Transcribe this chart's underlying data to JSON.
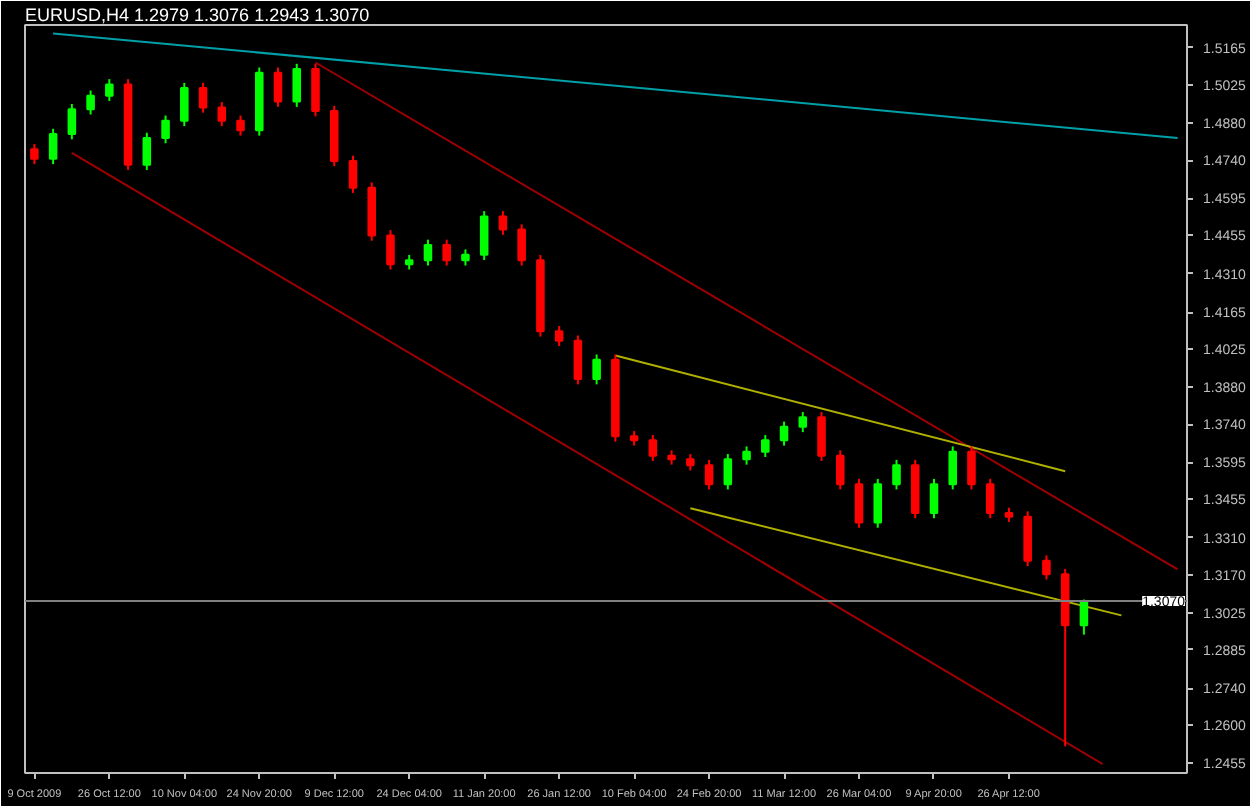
{
  "chart_data": {
    "type": "candlestick",
    "title": "EURUSD,H4  1.2979 1.3076 1.2943 1.3070",
    "categories": [
      "9 Oct 2009",
      null,
      null,
      null,
      "26 Oct 12:00",
      null,
      null,
      null,
      "10 Nov 04:00",
      null,
      null,
      null,
      "24 Nov 20:00",
      null,
      null,
      null,
      "9 Dec 12:00",
      null,
      null,
      null,
      "24 Dec 04:00",
      null,
      null,
      null,
      "11 Jan 20:00",
      null,
      null,
      null,
      "26 Jan 12:00",
      null,
      null,
      null,
      "10 Feb 04:00",
      null,
      null,
      null,
      "24 Feb 20:00",
      null,
      null,
      null,
      "11 Mar 12:00",
      null,
      null,
      null,
      "26 Mar 04:00",
      null,
      null,
      null,
      "9 Apr 20:00",
      null,
      null,
      null,
      "26 Apr 12:00",
      null,
      null,
      null,
      null,
      null,
      null,
      null,
      null,
      null
    ],
    "ohlc": [
      [
        1.4781,
        1.4801,
        1.4725,
        1.4745
      ],
      [
        1.4745,
        1.4859,
        1.4725,
        1.4839
      ],
      [
        1.4839,
        1.4953,
        1.4819,
        1.4933
      ],
      [
        1.4933,
        1.5004,
        1.4913,
        1.4984
      ],
      [
        1.4984,
        1.5047,
        1.4964,
        1.5027
      ],
      [
        1.5027,
        1.5047,
        1.4703,
        1.4723
      ],
      [
        1.4723,
        1.4844,
        1.4703,
        1.4824
      ],
      [
        1.4824,
        1.4909,
        1.4804,
        1.4889
      ],
      [
        1.4889,
        1.5033,
        1.4869,
        1.5013
      ],
      [
        1.5013,
        1.5033,
        1.492,
        1.494
      ],
      [
        1.494,
        1.496,
        1.4869,
        1.4889
      ],
      [
        1.4889,
        1.4909,
        1.4833,
        1.4853
      ],
      [
        1.4853,
        1.5091,
        1.4833,
        1.5071
      ],
      [
        1.5071,
        1.5091,
        1.4942,
        1.4962
      ],
      [
        1.4962,
        1.5105,
        1.4942,
        1.5085
      ],
      [
        1.5085,
        1.5105,
        1.4906,
        1.4926
      ],
      [
        1.4926,
        1.4946,
        1.4717,
        1.4737
      ],
      [
        1.4737,
        1.4757,
        1.4616,
        1.4636
      ],
      [
        1.4636,
        1.4656,
        1.4435,
        1.4455
      ],
      [
        1.4455,
        1.4475,
        1.4326,
        1.4346
      ],
      [
        1.4346,
        1.4381,
        1.4326,
        1.4361
      ],
      [
        1.4361,
        1.4439,
        1.4341,
        1.4419
      ],
      [
        1.4419,
        1.4439,
        1.4341,
        1.4361
      ],
      [
        1.4361,
        1.4402,
        1.4341,
        1.4382
      ],
      [
        1.4382,
        1.4547,
        1.4362,
        1.4527
      ],
      [
        1.4527,
        1.4547,
        1.4457,
        1.4477
      ],
      [
        1.4477,
        1.4497,
        1.4341,
        1.4361
      ],
      [
        1.4361,
        1.4381,
        1.4072,
        1.4092
      ],
      [
        1.4092,
        1.4112,
        1.4036,
        1.4056
      ],
      [
        1.4056,
        1.4076,
        1.3891,
        1.3911
      ],
      [
        1.3911,
        1.4004,
        1.3891,
        1.3984
      ],
      [
        1.3984,
        1.4004,
        1.3674,
        1.3694
      ],
      [
        1.3694,
        1.3714,
        1.3659,
        1.3679
      ],
      [
        1.3679,
        1.3699,
        1.3601,
        1.3621
      ],
      [
        1.3621,
        1.3641,
        1.3587,
        1.3607
      ],
      [
        1.3607,
        1.3627,
        1.3565,
        1.3585
      ],
      [
        1.3585,
        1.3605,
        1.3493,
        1.3513
      ],
      [
        1.3513,
        1.3627,
        1.3493,
        1.3607
      ],
      [
        1.3607,
        1.3656,
        1.3587,
        1.3636
      ],
      [
        1.3636,
        1.3699,
        1.3616,
        1.3679
      ],
      [
        1.3679,
        1.375,
        1.3659,
        1.373
      ],
      [
        1.373,
        1.3786,
        1.371,
        1.3766
      ],
      [
        1.3766,
        1.3786,
        1.3601,
        1.3621
      ],
      [
        1.3621,
        1.3641,
        1.3493,
        1.3513
      ],
      [
        1.3513,
        1.3533,
        1.3348,
        1.3368
      ],
      [
        1.3368,
        1.3533,
        1.3348,
        1.3513
      ],
      [
        1.3513,
        1.3605,
        1.3493,
        1.3585
      ],
      [
        1.3585,
        1.3605,
        1.3384,
        1.3404
      ],
      [
        1.3404,
        1.3533,
        1.3384,
        1.3513
      ],
      [
        1.3513,
        1.3656,
        1.3493,
        1.3636
      ],
      [
        1.3636,
        1.3656,
        1.3493,
        1.3513
      ],
      [
        1.3513,
        1.3533,
        1.3384,
        1.3404
      ],
      [
        1.3404,
        1.3424,
        1.337,
        1.339
      ],
      [
        1.339,
        1.341,
        1.3203,
        1.3223
      ],
      [
        1.3223,
        1.3243,
        1.3152,
        1.3172
      ],
      [
        1.3172,
        1.3192,
        1.252,
        1.2979
      ],
      [
        1.2979,
        1.3076,
        1.2943,
        1.307
      ],
      null,
      null,
      null,
      null,
      null
    ],
    "colors": [
      "#ff0000",
      "#00ff00",
      "#00ff00",
      "#00ff00",
      "#00ff00",
      "#ff0000",
      "#00ff00",
      "#00ff00",
      "#00ff00",
      "#ff0000",
      "#ff0000",
      "#ff0000",
      "#00ff00",
      "#ff0000",
      "#00ff00",
      "#ff0000",
      "#ff0000",
      "#ff0000",
      "#ff0000",
      "#ff0000",
      "#00ff00",
      "#00ff00",
      "#ff0000",
      "#00ff00",
      "#00ff00",
      "#ff0000",
      "#ff0000",
      "#ff0000",
      "#ff0000",
      "#ff0000",
      "#00ff00",
      "#ff0000",
      "#ff0000",
      "#ff0000",
      "#ff0000",
      "#ff0000",
      "#ff0000",
      "#00ff00",
      "#00ff00",
      "#00ff00",
      "#00ff00",
      "#00ff00",
      "#ff0000",
      "#ff0000",
      "#ff0000",
      "#00ff00",
      "#00ff00",
      "#ff0000",
      "#00ff00",
      "#00ff00",
      "#ff0000",
      "#ff0000",
      "#ff0000",
      "#ff0000",
      "#ff0000",
      "#ff0000",
      "#00ff00",
      null,
      null,
      null,
      null,
      null
    ],
    "series": [
      {
        "type": "line",
        "color": "#00a0a8",
        "values": [
          null,
          1.522,
          null,
          null,
          null,
          null,
          null,
          null,
          null,
          null,
          null,
          null,
          null,
          null,
          null,
          null,
          null,
          null,
          null,
          null,
          null,
          null,
          null,
          null,
          null,
          null,
          null,
          null,
          null,
          null,
          null,
          null,
          null,
          null,
          null,
          null,
          null,
          null,
          null,
          null,
          null,
          null,
          null,
          null,
          null,
          null,
          null,
          null,
          null,
          null,
          null,
          null,
          null,
          null,
          null,
          null,
          null,
          null,
          null,
          null,
          null,
          1.4824
        ]
      },
      {
        "type": "line",
        "color": "#a00000",
        "values": [
          null,
          null,
          null,
          null,
          null,
          null,
          null,
          null,
          null,
          null,
          null,
          null,
          null,
          null,
          null,
          1.511,
          null,
          null,
          null,
          null,
          null,
          null,
          null,
          null,
          null,
          null,
          null,
          null,
          null,
          null,
          null,
          null,
          null,
          null,
          null,
          null,
          null,
          null,
          null,
          null,
          null,
          null,
          null,
          null,
          null,
          null,
          null,
          null,
          null,
          null,
          null,
          null,
          null,
          null,
          null,
          null,
          null,
          null,
          null,
          null,
          null,
          1.319
        ]
      },
      {
        "type": "line",
        "color": "#a00000",
        "values": [
          null,
          null,
          1.4768,
          null,
          null,
          null,
          null,
          null,
          null,
          null,
          null,
          null,
          null,
          null,
          null,
          null,
          null,
          null,
          null,
          null,
          null,
          null,
          null,
          null,
          null,
          null,
          null,
          null,
          null,
          null,
          null,
          null,
          null,
          null,
          null,
          null,
          null,
          null,
          null,
          null,
          null,
          null,
          null,
          null,
          null,
          null,
          null,
          null,
          null,
          null,
          null,
          null,
          null,
          null,
          null,
          null,
          null,
          1.2453,
          null,
          null,
          null,
          null
        ]
      },
      {
        "type": "line",
        "color": "#b0b000",
        "values": [
          null,
          null,
          null,
          null,
          null,
          null,
          null,
          null,
          null,
          null,
          null,
          null,
          null,
          null,
          null,
          null,
          null,
          null,
          null,
          null,
          null,
          null,
          null,
          null,
          null,
          null,
          null,
          null,
          null,
          null,
          null,
          1.4,
          null,
          null,
          null,
          null,
          null,
          null,
          null,
          null,
          null,
          null,
          null,
          null,
          null,
          null,
          null,
          null,
          null,
          null,
          null,
          null,
          null,
          null,
          null,
          1.3562,
          null,
          null,
          null,
          null,
          null,
          null
        ]
      },
      {
        "type": "line",
        "color": "#b0b000",
        "values": [
          null,
          null,
          null,
          null,
          null,
          null,
          null,
          null,
          null,
          null,
          null,
          null,
          null,
          null,
          null,
          null,
          null,
          null,
          null,
          null,
          null,
          null,
          null,
          null,
          null,
          null,
          null,
          null,
          null,
          null,
          null,
          null,
          null,
          null,
          null,
          1.3422,
          null,
          null,
          null,
          null,
          null,
          null,
          null,
          null,
          null,
          null,
          null,
          null,
          null,
          null,
          null,
          null,
          null,
          null,
          null,
          null,
          null,
          null,
          1.3016,
          null,
          null,
          null
        ]
      }
    ],
    "ref_lines": [
      {
        "axis": "y",
        "value": 1.307,
        "label": "1.3070",
        "color": "#808080"
      }
    ],
    "ylim": [
      1.2419,
      1.5252
    ],
    "yticks": [
      1.5165,
      1.5025,
      {
        "value": 1.488,
        "label": "1.4880"
      },
      {
        "value": 1.474,
        "label": "1.4740"
      },
      1.4595,
      1.4455,
      {
        "value": 1.431,
        "label": "1.4310"
      },
      1.4165,
      1.4025,
      {
        "value": 1.388,
        "label": "1.3880"
      },
      {
        "value": 1.374,
        "label": "1.3740"
      },
      1.3595,
      1.3455,
      {
        "value": 1.331,
        "label": "1.3310"
      },
      {
        "value": 1.317,
        "label": "1.3170"
      },
      1.3025,
      1.2885,
      {
        "value": 1.274,
        "label": "1.2740"
      },
      {
        "value": 1.26,
        "label": "1.2600"
      },
      1.2455
    ],
    "grid": false
  }
}
